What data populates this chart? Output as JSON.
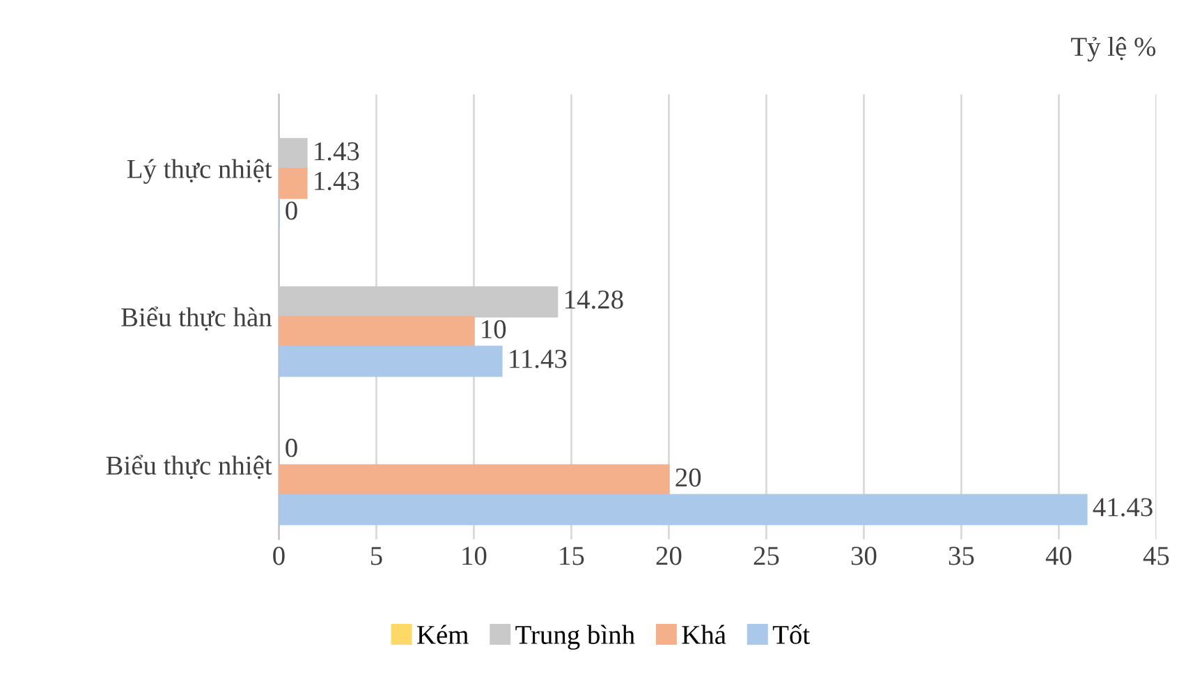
{
  "chart_data": {
    "type": "bar",
    "orientation": "horizontal",
    "xlabel": "Tỷ lệ %",
    "categories": [
      "Lý thực nhiệt",
      "Biểu thực hàn",
      "Biểu thực nhiệt"
    ],
    "series": [
      {
        "name": "Kém",
        "color": "#ffd966",
        "values": [
          null,
          null,
          null
        ]
      },
      {
        "name": "Trung bình",
        "color": "#c9c9c9",
        "values": [
          1.43,
          14.28,
          0
        ]
      },
      {
        "name": "Khá",
        "color": "#f4b08a",
        "values": [
          1.43,
          10,
          20
        ]
      },
      {
        "name": "Tốt",
        "color": "#a9c8ea",
        "values": [
          0,
          11.43,
          41.43
        ]
      }
    ],
    "xlim": [
      0,
      45
    ],
    "xticks": [
      0,
      5,
      10,
      15,
      20,
      25,
      30,
      35,
      40,
      45
    ],
    "grid": "x",
    "legend": "bottom",
    "data_labels": true
  }
}
